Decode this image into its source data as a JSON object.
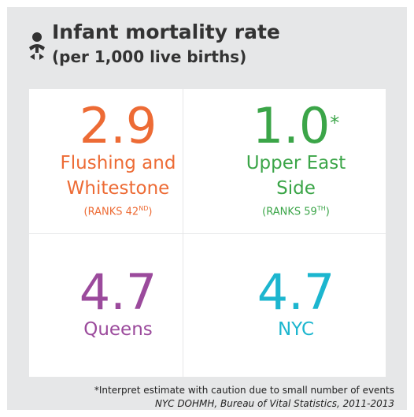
{
  "header": {
    "title": "Infant mortality rate",
    "subtitle": "(per 1,000 live births)"
  },
  "cells": [
    {
      "value": "2.9",
      "label": "Flushing and Whitestone",
      "rank": {
        "text": "(RANKS 42",
        "sup": "ND",
        "close": ")"
      },
      "color": "#ed6b35"
    },
    {
      "value": "1.0",
      "marker": "*",
      "label": "Upper East Side",
      "rank": {
        "text": "(RANKS 59",
        "sup": "TH",
        "close": ")"
      },
      "color": "#3ba548"
    },
    {
      "value": "4.7",
      "label": "Queens",
      "color": "#9b4a9c"
    },
    {
      "value": "4.7",
      "label": "NYC",
      "color": "#1cb6cf"
    }
  ],
  "footnote": {
    "note": "*Interpret estimate with caution due to small number of events",
    "source": "NYC DOHMH, Bureau of Vital Statistics, 2011-2013"
  }
}
